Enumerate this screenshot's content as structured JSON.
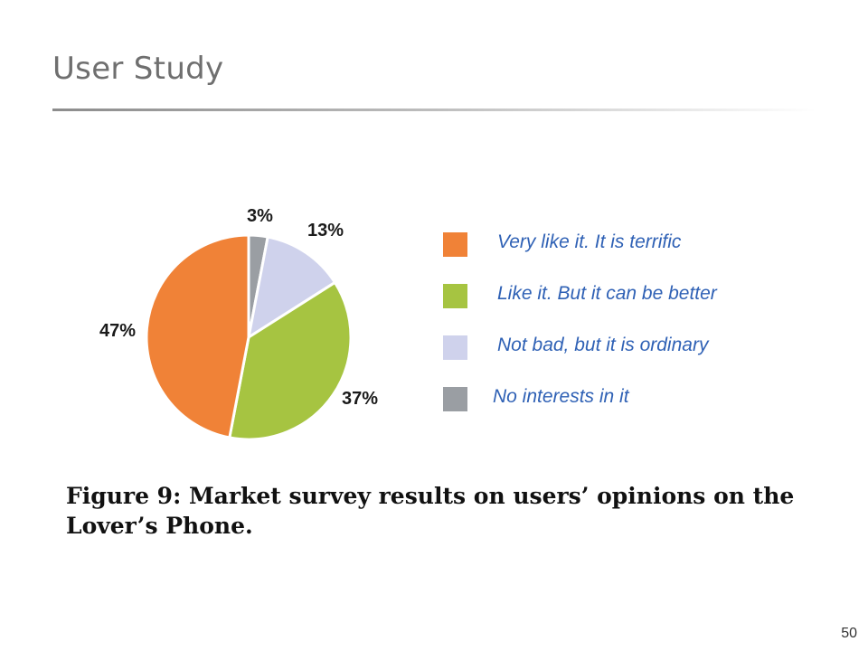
{
  "slide": {
    "title": "User Study",
    "page_number": "50"
  },
  "figure": {
    "caption": "Figure 9: Market survey results on users’ opinions on the Lover’s Phone."
  },
  "chart_data": {
    "type": "pie",
    "title": "",
    "slices": [
      {
        "label": "Very like it. It is terrific",
        "value": 47,
        "display": "47%",
        "color": "#f08237"
      },
      {
        "label": "Like it. But it can be better",
        "value": 37,
        "display": "37%",
        "color": "#a6c441"
      },
      {
        "label": "Not bad, but it is ordinary",
        "value": 13,
        "display": "13%",
        "color": "#cfd2ec"
      },
      {
        "label": "No interests in it",
        "value": 3,
        "display": "3%",
        "color": "#9a9ea3"
      }
    ],
    "legend_position": "right"
  }
}
